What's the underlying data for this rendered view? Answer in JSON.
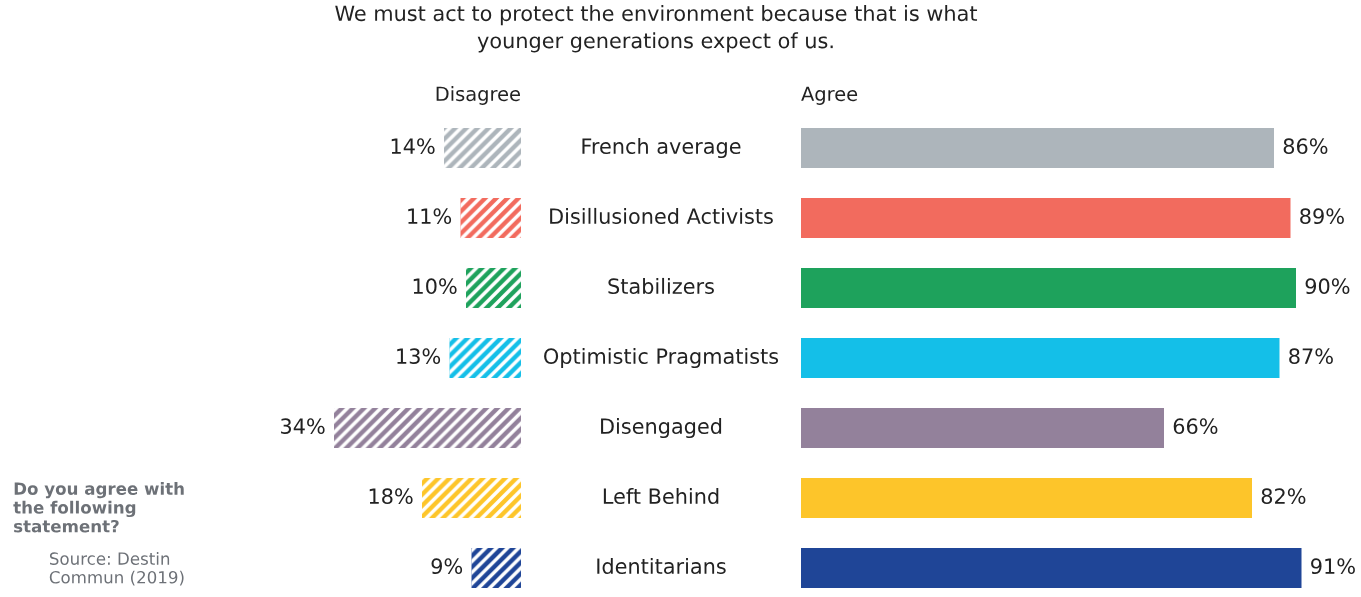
{
  "chart_data": [
    {
      "type": "bar",
      "orientation": "horizontal",
      "title": "We must act to protect the environment because that is what\nyounger generations expect of us.",
      "categories": [
        null,
        null,
        null,
        null,
        null,
        null,
        null
      ],
      "series": [
        {
          "name": "Disagree",
          "values": [
            14,
            11,
            10,
            13,
            34,
            18,
            9
          ],
          "value_labels": [
            "14%",
            "11%",
            "10%",
            "13%",
            "34%",
            "18%",
            "9%"
          ],
          "colors": [
            "#adb5bb",
            "#f26b5e",
            "#1ea25c",
            "#14bfe8",
            "#93819b",
            "#fdc52a",
            "#1f4597"
          ]
        }
      ],
      "annotations": [
        "Do you agree with the following statement?",
        "Source: Destin Commun (2019)"
      ]
    },
    {
      "type": "bar",
      "orientation": "horizontal",
      "categories": [
        "French average",
        "Disillusioned Activists",
        "Stabilizers",
        "Optimistic Pragmatists",
        "Disengaged",
        "Left Behind",
        "Identitarians"
      ],
      "series": [
        {
          "name": "Agree",
          "values": [
            86,
            89,
            90,
            87,
            66,
            82,
            91
          ],
          "value_labels": [
            "86%",
            "89%",
            "90%",
            "87%",
            "66%",
            "82%",
            "91%"
          ],
          "colors": [
            "#adb5bb",
            "#f26b5e",
            "#1ea25c",
            "#14bfe8",
            "#93819b",
            "#fdc52a",
            "#1f4597"
          ]
        }
      ]
    }
  ]
}
